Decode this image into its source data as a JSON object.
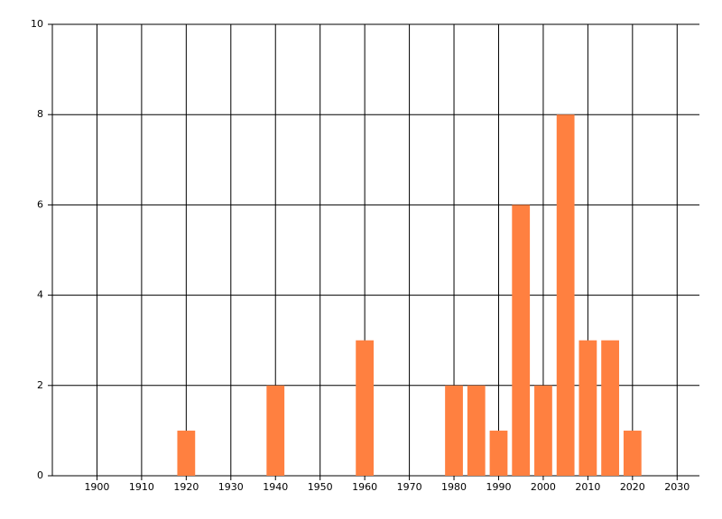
{
  "chart_data": {
    "type": "bar",
    "x": [
      1920,
      1940,
      1960,
      1980,
      1985,
      1990,
      1995,
      2000,
      2005,
      2010,
      2015,
      2020
    ],
    "values": [
      1,
      2,
      3,
      2,
      2,
      1,
      6,
      2,
      8,
      3,
      3,
      1
    ],
    "color": "#ff8040",
    "xlim": [
      1890,
      2035
    ],
    "xticks": [
      1900,
      1910,
      1920,
      1930,
      1940,
      1950,
      1960,
      1970,
      1980,
      1990,
      2000,
      2010,
      2020,
      2030
    ],
    "ylim": [
      0,
      10
    ],
    "yticks": [
      0,
      2,
      4,
      6,
      8,
      10
    ],
    "grid": true
  }
}
